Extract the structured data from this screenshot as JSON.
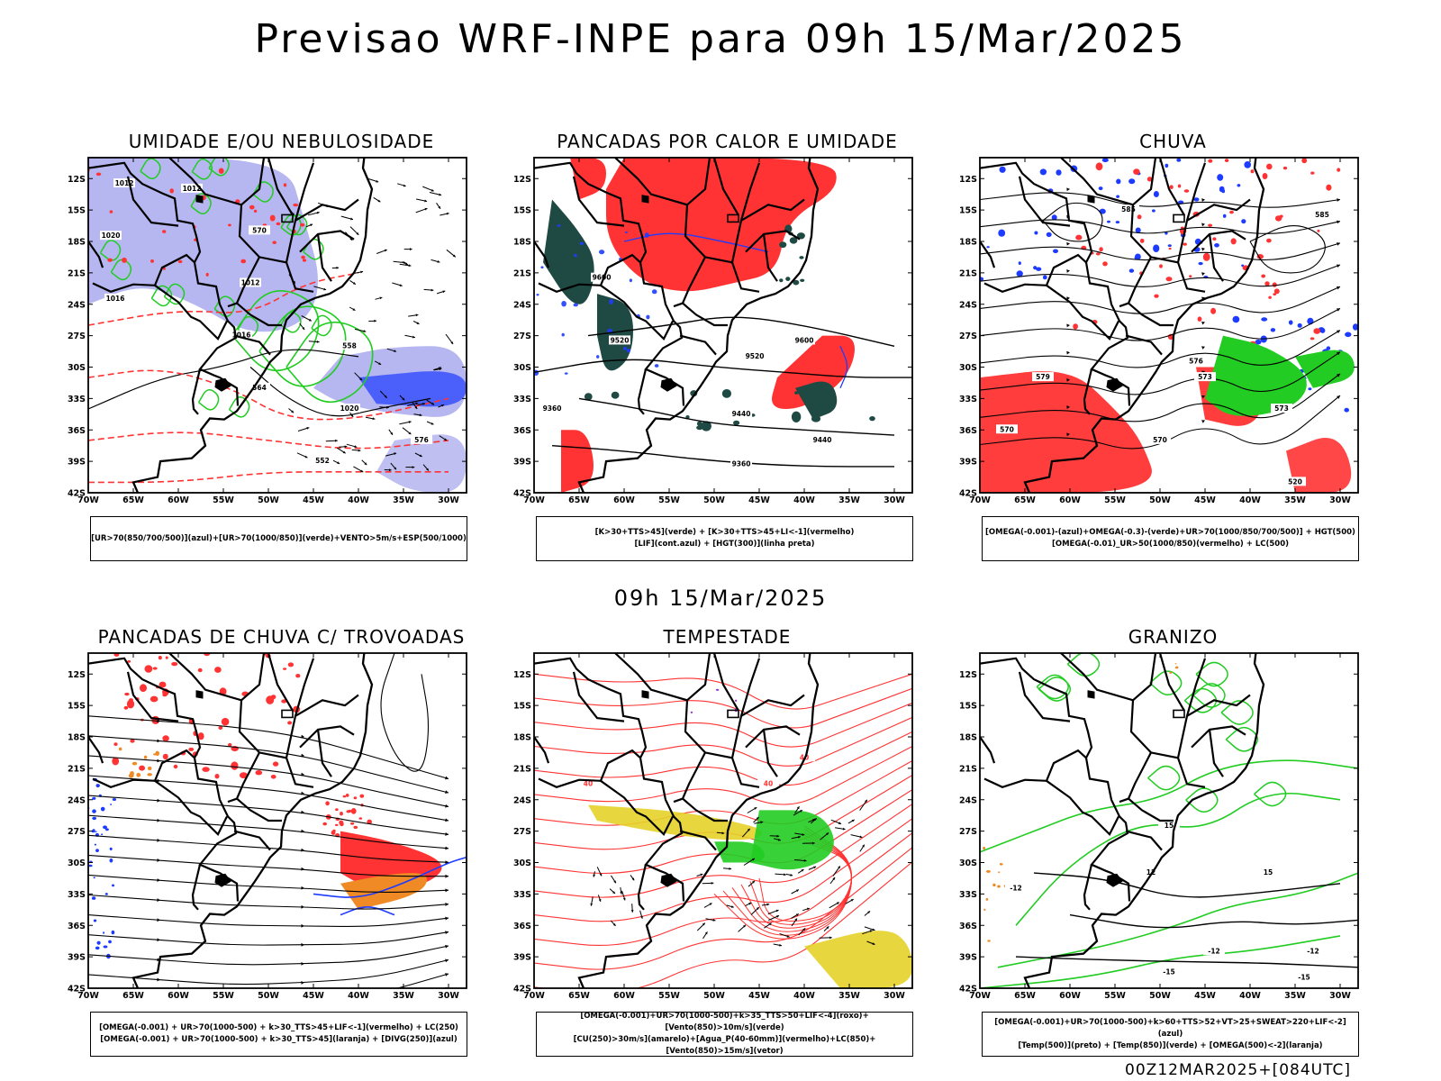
{
  "page": {
    "title": "Previsao WRF-INPE  para 09h 15/Mar/2025",
    "mid_label": "09h 15/Mar/2025",
    "stamp": "00Z12MAR2025+[084UTC]"
  },
  "axes": {
    "lat_labels": [
      "12S",
      "15S",
      "18S",
      "21S",
      "24S",
      "27S",
      "30S",
      "33S",
      "36S",
      "39S",
      "42S"
    ],
    "lon_labels": [
      "70W",
      "65W",
      "60W",
      "55W",
      "50W",
      "45W",
      "40W",
      "35W",
      "30W"
    ]
  },
  "colors": {
    "blue": "#1e3cff",
    "lavender": "#a9a9ee",
    "green": "#22cc22",
    "red": "#ff3333",
    "dark_teal": "#1f4a44",
    "yellow": "#e6d229",
    "orange": "#f08a24"
  },
  "panels": [
    {
      "id": "umidade",
      "title": "UMIDADE E/OU NEBULOSIDADE",
      "legend": [
        "[UR>70(850/700/500)](azul)+[UR>70(1000/850)](verde)+VENTO>5m/s+ESP(500/1000)"
      ],
      "contour_labels": [
        "1012",
        "1012",
        "1020",
        "1016",
        "1012",
        "1016",
        "1020",
        "576",
        "570",
        "564",
        "558",
        "552"
      ]
    },
    {
      "id": "pancadas-calor",
      "title": "PANCADAS POR CALOR E UMIDADE",
      "legend": [
        "[K>30+TTS>45](verde) + [K>30+TTS>45+LI<-1](vermelho)",
        "[LIF](cont.azul) + [HGT(300)](linha preta)"
      ],
      "contour_labels": [
        "9600",
        "9600",
        "9520",
        "9520",
        "9440",
        "9440",
        "9360",
        "9360"
      ]
    },
    {
      "id": "chuva",
      "title": "CHUVA",
      "legend": [
        "[OMEGA(-0.001)-(azul)+OMEGA(-0.3)-(verde)+UR>70(1000/850/700/500)] + HGT(500)",
        "[OMEGA(-0.01)_UR>50(1000/850)(vermelho) + LC(500)"
      ],
      "contour_labels": [
        "585",
        "585",
        "579",
        "576",
        "573",
        "570",
        "573",
        "570",
        "520"
      ]
    },
    {
      "id": "pancadas-trovoadas",
      "title": "PANCADAS DE CHUVA C/ TROVOADAS",
      "legend": [
        "[OMEGA(-0.001) + UR>70(1000-500) + k>30_TTS>45+LIF<-1](vermelho) + LC(250)",
        "[OMEGA(-0.001) + UR>70(1000-500) + k>30_TTS>45](laranja) + [DIVG(250)](azul)"
      ],
      "contour_labels": []
    },
    {
      "id": "tempestade",
      "title": "TEMPESTADE",
      "legend": [
        "[OMEGA(-0.001)+UR>70(1000-500)+k>35_TTS>50+LIF<-4](roxo)+[Vento(850)>10m/s](verde)",
        "[CU(250)>30m/s](amarelo)+[Agua_P(40-60mm)](vermelho)+LC(850)+[Vento(850)>15m/s](vetor)"
      ],
      "contour_labels": [
        "40",
        "40",
        "40"
      ]
    },
    {
      "id": "granizo",
      "title": "GRANIZO",
      "legend": [
        "[OMEGA(-0.001)+UR>70(1000-500)+k>60+TTS>52+VT>25+SWEAT>220+LIF<-2](azul)",
        "[Temp(500)](preto) + [Temp(850)](verde) + [OMEGA(500)<-2](laranja)"
      ],
      "contour_labels": [
        "-12",
        "-12",
        "-12",
        "-15",
        "-15",
        "15",
        "15",
        "12"
      ]
    }
  ]
}
